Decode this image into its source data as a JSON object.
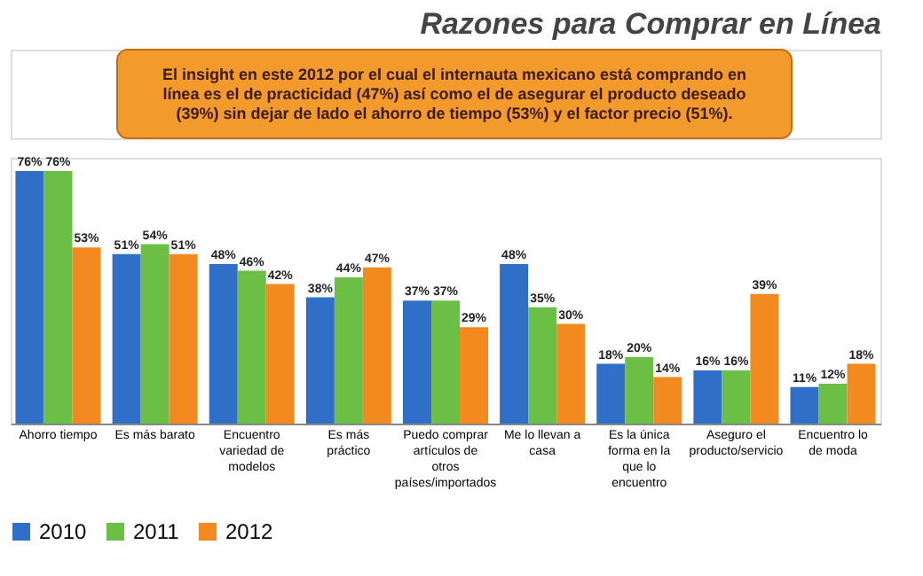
{
  "chart_data": {
    "type": "bar",
    "title": "Razones para Comprar en Línea",
    "annotations": [
      "El insight  en este 2012 por el cual el internauta mexicano está comprando en línea es el de practicidad (47%) así como el de asegurar el producto deseado (39%) sin dejar de lado el ahorro de tiempo (53%) y el factor precio (51%)."
    ],
    "categories": [
      "Ahorro tiempo",
      "Es más barato",
      "Encuentro variedad de modelos",
      "Es más práctico",
      "Puedo comprar artículos de otros países/importados",
      "Me lo llevan a casa",
      "Es la única forma en la que lo encuentro",
      "Aseguro el producto/servicio",
      "Encuentro lo de moda"
    ],
    "series": [
      {
        "name": "2010",
        "color": "#2f6fc8",
        "values": [
          76,
          51,
          48,
          38,
          37,
          48,
          18,
          16,
          11
        ],
        "value_labels": [
          "76%",
          "51%",
          "48%",
          "38%",
          "37%",
          "48%",
          "18%",
          "16%",
          "11%"
        ]
      },
      {
        "name": "2011",
        "color": "#6cbf45",
        "values": [
          76,
          54,
          46,
          44,
          37,
          35,
          20,
          16,
          12
        ],
        "value_labels": [
          "76%",
          "54%",
          "46%",
          "44%",
          "37%",
          "35%",
          "20%",
          "16%",
          "12%"
        ]
      },
      {
        "name": "2012",
        "color": "#f28a1f",
        "values": [
          53,
          51,
          42,
          47,
          29,
          30,
          14,
          39,
          18
        ],
        "value_labels": [
          "53%",
          "51%",
          "42%",
          "47%",
          "29%",
          "30%",
          "14%",
          "39%",
          "18%"
        ]
      }
    ],
    "legend": "bottom",
    "grid": false
  }
}
